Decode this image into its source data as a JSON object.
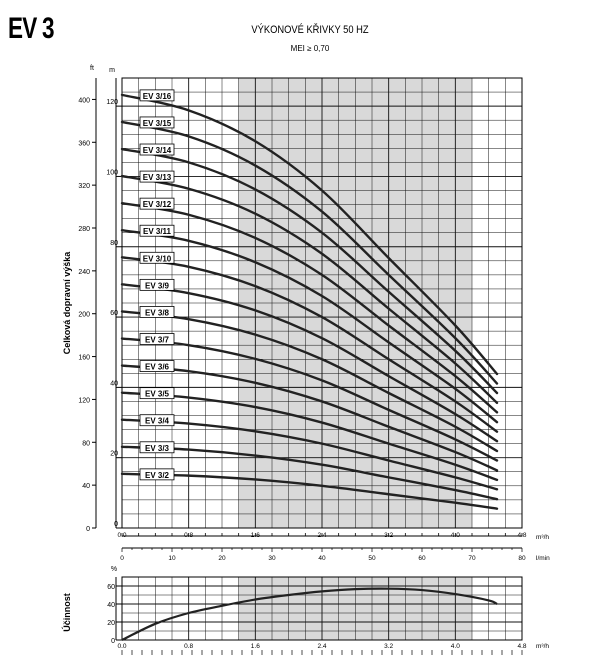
{
  "model": "EV 3",
  "title": "VÝKONOVÉ KŘIVKY 50 HZ",
  "subtitle": "MEI ≥ 0,70",
  "colors": {
    "curve": "#222222",
    "grid": "#111111",
    "shaded": "#d9d9d9"
  },
  "chart_data": [
    {
      "type": "line",
      "title": "VÝKONOVÉ KŘIVKY 50 HZ",
      "subtitle": "MEI ≥ 0,70",
      "ylabel": "Celková dopravní výška",
      "ylabel_units": [
        "ft",
        "m"
      ],
      "ylim_m": [
        0,
        128
      ],
      "ylim_ft": [
        0,
        420
      ],
      "yticks_m": [
        0,
        20,
        40,
        60,
        80,
        100,
        120
      ],
      "yticks_ft": [
        0,
        40,
        80,
        120,
        160,
        200,
        240,
        280,
        320,
        360,
        400
      ],
      "x_unit": "m³/h",
      "xlim": [
        0,
        4.8
      ],
      "xticks": [
        "0.0",
        "0.8",
        "1.6",
        "2.4",
        "3.2",
        "4.0",
        "4.8"
      ],
      "x2_unit": "l/min",
      "x2ticks": [
        "0",
        "10",
        "20",
        "30",
        "40",
        "50",
        "60",
        "70",
        "80"
      ],
      "shaded_range": [
        1.4,
        4.2
      ],
      "grid": true,
      "series": [
        {
          "name": "EV 3/2",
          "x": [
            0.0,
            0.8,
            1.6,
            2.4,
            3.2,
            4.0,
            4.5
          ],
          "y": [
            15.4,
            14.9,
            13.8,
            12.0,
            9.6,
            7.2,
            5.5
          ]
        },
        {
          "name": "EV 3/3",
          "x": [
            0.0,
            0.8,
            1.6,
            2.4,
            3.2,
            4.0,
            4.5
          ],
          "y": [
            23.1,
            22.3,
            20.6,
            18.0,
            14.4,
            10.8,
            8.2
          ]
        },
        {
          "name": "EV 3/4",
          "x": [
            0.0,
            0.8,
            1.6,
            2.4,
            3.2,
            4.0,
            4.5
          ],
          "y": [
            30.8,
            29.7,
            27.5,
            24.0,
            19.2,
            14.4,
            11.0
          ]
        },
        {
          "name": "EV 3/5",
          "x": [
            0.0,
            0.8,
            1.6,
            2.4,
            3.2,
            4.0,
            4.5
          ],
          "y": [
            38.5,
            37.1,
            34.4,
            30.0,
            24.0,
            18.0,
            13.7
          ]
        },
        {
          "name": "EV 3/6",
          "x": [
            0.0,
            0.8,
            1.6,
            2.4,
            3.2,
            4.0,
            4.5
          ],
          "y": [
            46.2,
            44.6,
            41.3,
            36.0,
            28.8,
            21.6,
            16.4
          ]
        },
        {
          "name": "EV 3/7",
          "x": [
            0.0,
            0.8,
            1.6,
            2.4,
            3.2,
            4.0,
            4.5
          ],
          "y": [
            53.9,
            52.0,
            48.1,
            42.0,
            33.6,
            25.2,
            19.2
          ]
        },
        {
          "name": "EV 3/8",
          "x": [
            0.0,
            0.8,
            1.6,
            2.4,
            3.2,
            4.0,
            4.5
          ],
          "y": [
            61.6,
            59.4,
            55.0,
            48.0,
            38.4,
            28.8,
            21.9
          ]
        },
        {
          "name": "EV 3/9",
          "x": [
            0.0,
            0.8,
            1.6,
            2.4,
            3.2,
            4.0,
            4.5
          ],
          "y": [
            69.3,
            66.8,
            61.9,
            54.0,
            43.2,
            32.4,
            24.7
          ]
        },
        {
          "name": "EV 3/10",
          "x": [
            0.0,
            0.8,
            1.6,
            2.4,
            3.2,
            4.0,
            4.5
          ],
          "y": [
            77.0,
            74.3,
            68.8,
            60.0,
            48.0,
            36.0,
            27.4
          ]
        },
        {
          "name": "EV 3/11",
          "x": [
            0.0,
            0.8,
            1.6,
            2.4,
            3.2,
            4.0,
            4.5
          ],
          "y": [
            84.7,
            81.7,
            75.6,
            66.0,
            52.8,
            39.6,
            30.1
          ]
        },
        {
          "name": "EV 3/12",
          "x": [
            0.0,
            0.8,
            1.6,
            2.4,
            3.2,
            4.0,
            4.5
          ],
          "y": [
            92.4,
            89.1,
            82.5,
            72.0,
            57.6,
            43.2,
            32.9
          ]
        },
        {
          "name": "EV 3/13",
          "x": [
            0.0,
            0.8,
            1.6,
            2.4,
            3.2,
            4.0,
            4.5
          ],
          "y": [
            100.1,
            96.5,
            89.4,
            78.0,
            62.4,
            46.8,
            35.6
          ]
        },
        {
          "name": "EV 3/14",
          "x": [
            0.0,
            0.8,
            1.6,
            2.4,
            3.2,
            4.0,
            4.5
          ],
          "y": [
            107.8,
            104.0,
            96.3,
            84.0,
            67.2,
            50.4,
            38.4
          ]
        },
        {
          "name": "EV 3/15",
          "x": [
            0.0,
            0.8,
            1.6,
            2.4,
            3.2,
            4.0,
            4.5
          ],
          "y": [
            115.5,
            111.4,
            103.1,
            90.0,
            72.0,
            54.0,
            41.1
          ]
        },
        {
          "name": "EV 3/16",
          "x": [
            0.0,
            0.8,
            1.6,
            2.4,
            3.2,
            4.0,
            4.5
          ],
          "y": [
            123.2,
            118.8,
            110.0,
            96.0,
            76.8,
            57.6,
            43.8
          ]
        }
      ]
    },
    {
      "type": "line",
      "ylabel": "Účinnost",
      "yunit": "%",
      "ylim": [
        0,
        70
      ],
      "yticks": [
        0,
        20,
        40,
        60
      ],
      "x_unit": "m³/h",
      "xlim": [
        0,
        4.8
      ],
      "xticks": [
        "0.0",
        "0.8",
        "1.6",
        "2.4",
        "3.2",
        "4.0",
        "4.8"
      ],
      "shaded_range": [
        1.4,
        4.2
      ],
      "grid": true,
      "series": [
        {
          "x": [
            0.0,
            0.4,
            0.8,
            1.2,
            1.6,
            2.0,
            2.4,
            2.8,
            3.2,
            3.6,
            4.0,
            4.4,
            4.5
          ],
          "y": [
            0,
            18,
            30,
            38,
            45,
            50,
            54,
            56.5,
            57,
            55.5,
            51,
            44,
            40
          ]
        }
      ]
    }
  ]
}
